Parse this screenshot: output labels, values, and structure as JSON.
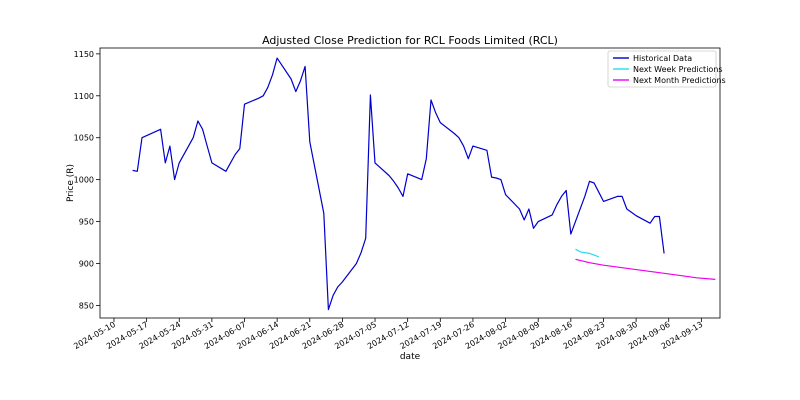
{
  "chart_data": {
    "type": "line",
    "title": "Adjusted Close Prediction for RCL Foods Limited (RCL)",
    "xlabel": "date",
    "ylabel": "Price (R)",
    "x_ticks": [
      "2024-05-10",
      "2024-05-17",
      "2024-05-24",
      "2024-05-31",
      "2024-06-07",
      "2024-06-14",
      "2024-06-21",
      "2024-06-28",
      "2024-07-05",
      "2024-07-12",
      "2024-07-19",
      "2024-07-26",
      "2024-08-02",
      "2024-08-09",
      "2024-08-16",
      "2024-08-23",
      "2024-08-30",
      "2024-09-06",
      "2024-09-13"
    ],
    "y_ticks": [
      850,
      900,
      950,
      1000,
      1050,
      1100,
      1150
    ],
    "xlim": [
      "2024-05-07",
      "2024-09-17"
    ],
    "ylim": [
      835,
      1157
    ],
    "grid": false,
    "legend_position": "top-right",
    "series": [
      {
        "name": "Historical Data",
        "color": "#0000cc",
        "points": [
          [
            "2024-05-14",
            1011
          ],
          [
            "2024-05-15",
            1010
          ],
          [
            "2024-05-16",
            1050
          ],
          [
            "2024-05-20",
            1060
          ],
          [
            "2024-05-21",
            1020
          ],
          [
            "2024-05-22",
            1040
          ],
          [
            "2024-05-23",
            1000
          ],
          [
            "2024-05-24",
            1020
          ],
          [
            "2024-05-27",
            1050
          ],
          [
            "2024-05-28",
            1070
          ],
          [
            "2024-05-29",
            1060
          ],
          [
            "2024-05-30",
            1040
          ],
          [
            "2024-05-31",
            1020
          ],
          [
            "2024-06-03",
            1010
          ],
          [
            "2024-06-04",
            1020
          ],
          [
            "2024-06-05",
            1030
          ],
          [
            "2024-06-06",
            1037
          ],
          [
            "2024-06-07",
            1090
          ],
          [
            "2024-06-10",
            1097
          ],
          [
            "2024-06-11",
            1100
          ],
          [
            "2024-06-12",
            1110
          ],
          [
            "2024-06-13",
            1125
          ],
          [
            "2024-06-14",
            1145
          ],
          [
            "2024-06-17",
            1120
          ],
          [
            "2024-06-18",
            1105
          ],
          [
            "2024-06-19",
            1118
          ],
          [
            "2024-06-20",
            1135
          ],
          [
            "2024-06-21",
            1045
          ],
          [
            "2024-06-24",
            960
          ],
          [
            "2024-06-25",
            845
          ],
          [
            "2024-06-26",
            862
          ],
          [
            "2024-06-27",
            872
          ],
          [
            "2024-06-28",
            878
          ],
          [
            "2024-07-01",
            900
          ],
          [
            "2024-07-02",
            913
          ],
          [
            "2024-07-03",
            930
          ],
          [
            "2024-07-04",
            1101
          ],
          [
            "2024-07-05",
            1020
          ],
          [
            "2024-07-08",
            1005
          ],
          [
            "2024-07-09",
            998
          ],
          [
            "2024-07-10",
            990
          ],
          [
            "2024-07-11",
            980
          ],
          [
            "2024-07-12",
            1007
          ],
          [
            "2024-07-15",
            1000
          ],
          [
            "2024-07-16",
            1025
          ],
          [
            "2024-07-17",
            1095
          ],
          [
            "2024-07-18",
            1080
          ],
          [
            "2024-07-19",
            1068
          ],
          [
            "2024-07-22",
            1055
          ],
          [
            "2024-07-23",
            1050
          ],
          [
            "2024-07-24",
            1040
          ],
          [
            "2024-07-25",
            1025
          ],
          [
            "2024-07-26",
            1040
          ],
          [
            "2024-07-29",
            1035
          ],
          [
            "2024-07-30",
            1003
          ],
          [
            "2024-07-31",
            1002
          ],
          [
            "2024-08-01",
            1000
          ],
          [
            "2024-08-02",
            982
          ],
          [
            "2024-08-05",
            965
          ],
          [
            "2024-08-06",
            952
          ],
          [
            "2024-08-07",
            965
          ],
          [
            "2024-08-08",
            942
          ],
          [
            "2024-08-09",
            950
          ],
          [
            "2024-08-12",
            958
          ],
          [
            "2024-08-13",
            970
          ],
          [
            "2024-08-14",
            980
          ],
          [
            "2024-08-15",
            987
          ],
          [
            "2024-08-16",
            935
          ],
          [
            "2024-08-19",
            980
          ],
          [
            "2024-08-20",
            998
          ],
          [
            "2024-08-21",
            996
          ],
          [
            "2024-08-22",
            985
          ],
          [
            "2024-08-23",
            974
          ],
          [
            "2024-08-26",
            980
          ],
          [
            "2024-08-27",
            980
          ],
          [
            "2024-08-28",
            965
          ],
          [
            "2024-08-29",
            961
          ],
          [
            "2024-08-30",
            957
          ],
          [
            "2024-09-02",
            948
          ],
          [
            "2024-09-03",
            956
          ],
          [
            "2024-09-04",
            956
          ],
          [
            "2024-09-05",
            912
          ]
        ]
      },
      {
        "name": "Next Week Predictions",
        "color": "#22ddee",
        "points": [
          [
            "2024-08-17",
            917
          ],
          [
            "2024-08-18",
            914
          ],
          [
            "2024-08-19",
            913
          ],
          [
            "2024-08-20",
            912
          ],
          [
            "2024-08-21",
            910
          ],
          [
            "2024-08-22",
            908
          ]
        ]
      },
      {
        "name": "Next Month Predictions",
        "color": "#ee00ee",
        "points": [
          [
            "2024-08-17",
            905
          ],
          [
            "2024-08-20",
            901
          ],
          [
            "2024-08-23",
            898
          ],
          [
            "2024-08-27",
            895
          ],
          [
            "2024-08-31",
            892
          ],
          [
            "2024-09-04",
            889
          ],
          [
            "2024-09-08",
            886
          ],
          [
            "2024-09-12",
            883
          ],
          [
            "2024-09-16",
            881
          ]
        ]
      }
    ]
  }
}
